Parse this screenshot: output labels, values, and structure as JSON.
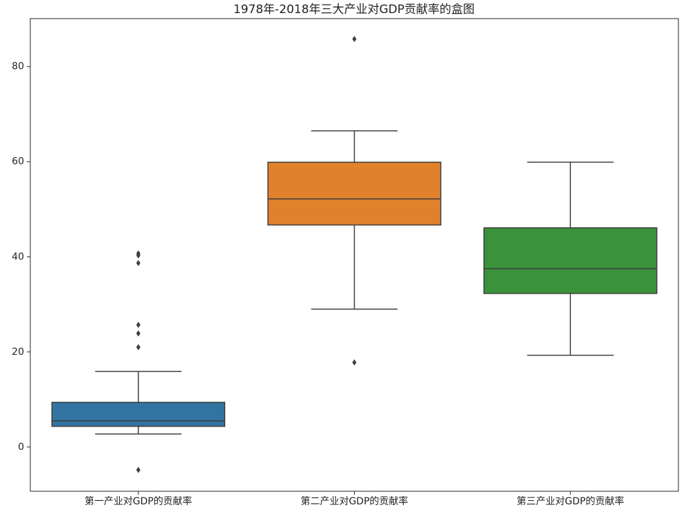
{
  "chart_data": {
    "type": "box",
    "title": "1978年-2018年三大产业对GDP贡献率的盒图",
    "categories": [
      "第一产业对GDP的贡献率",
      "第二产业对GDP的贡献率",
      "第三产业对GDP的贡献率"
    ],
    "colors": [
      "#3274a1",
      "#e1812c",
      "#3a923a"
    ],
    "boxes": [
      {
        "min": 2.75,
        "q1": 4.35,
        "median": 5.5,
        "q3": 9.4,
        "max": 15.9,
        "outliers": [
          -4.8,
          21.0,
          23.9,
          25.7,
          38.7,
          40.3,
          40.7
        ]
      },
      {
        "min": 29.0,
        "q1": 46.7,
        "median": 52.2,
        "q3": 59.9,
        "max": 66.5,
        "outliers": [
          17.8,
          85.8
        ]
      },
      {
        "min": 19.3,
        "q1": 32.3,
        "median": 37.5,
        "q3": 46.1,
        "max": 59.9,
        "outliers": []
      }
    ],
    "ylim": [
      -9.3,
      90.1
    ],
    "yticks": [
      0,
      20,
      40,
      60,
      80
    ],
    "grid": false
  }
}
